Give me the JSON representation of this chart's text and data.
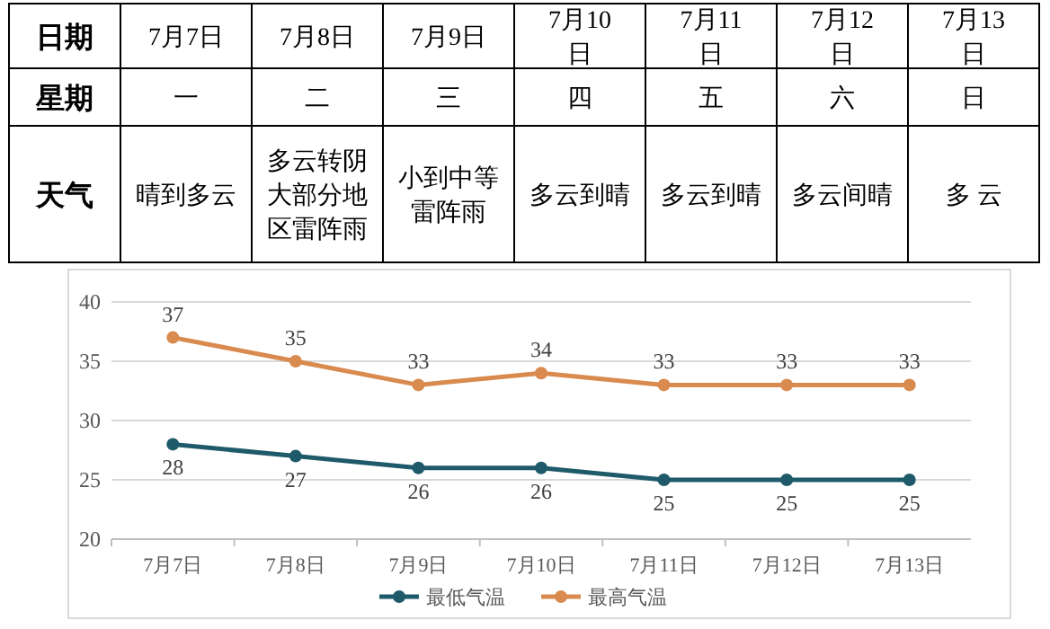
{
  "chart_data": [
    {
      "type": "other",
      "y_categories": [
        "日期",
        "星期",
        "天气"
      ],
      "cell_labels": [
        [
          "7月7日",
          "7月8日",
          "7月9日",
          "7月10日",
          "7月11日",
          "7月12日",
          "7月13日"
        ],
        [
          "一",
          "二",
          "三",
          "四",
          "五",
          "六",
          "日"
        ],
        [
          "晴到多云",
          "多云转阴大部分地区雷阵雨",
          "小到中等雷阵雨",
          "多云到晴",
          "多云到晴",
          "多云间晴",
          "多 云"
        ]
      ]
    },
    {
      "type": "line",
      "categories": [
        "7月7日",
        "7月8日",
        "7月9日",
        "7月10日",
        "7月11日",
        "7月12日",
        "7月13日"
      ],
      "series": [
        {
          "name": "最低气温",
          "color": "#1f5a6b",
          "values": [
            28,
            27,
            26,
            26,
            25,
            25,
            25
          ]
        },
        {
          "name": "最高气温",
          "color": "#d98a4e",
          "values": [
            37,
            35,
            33,
            34,
            33,
            33,
            33
          ]
        }
      ],
      "ylim": [
        20,
        40
      ],
      "yticks": [
        20,
        25,
        30,
        35,
        40
      ],
      "grid": "y",
      "legend": "bottom",
      "marker": "circle",
      "data_labels": true
    }
  ]
}
